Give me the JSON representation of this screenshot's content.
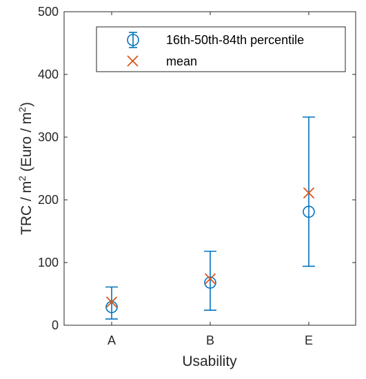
{
  "chart_data": {
    "type": "scatter",
    "categories": [
      "A",
      "B",
      "E"
    ],
    "xlabel": "Usability",
    "ylabel": {
      "parts": [
        "TRC / m",
        "2",
        " (Euro / m",
        "2",
        ")"
      ]
    },
    "ylim": [
      0,
      500
    ],
    "yticks": [
      "0",
      "100",
      "200",
      "300",
      "400",
      "500"
    ],
    "grid": false,
    "legend_position": "top-right",
    "series": [
      {
        "name": "16th-50th-84th percentile",
        "marker": "circle-errorbar",
        "color": "#0072BD",
        "median": [
          29,
          68,
          181
        ],
        "p16": [
          10,
          24,
          94
        ],
        "p84": [
          61,
          118,
          332
        ]
      },
      {
        "name": "mean",
        "marker": "x",
        "color": "#D95319",
        "values": [
          37,
          74,
          211
        ]
      }
    ]
  }
}
